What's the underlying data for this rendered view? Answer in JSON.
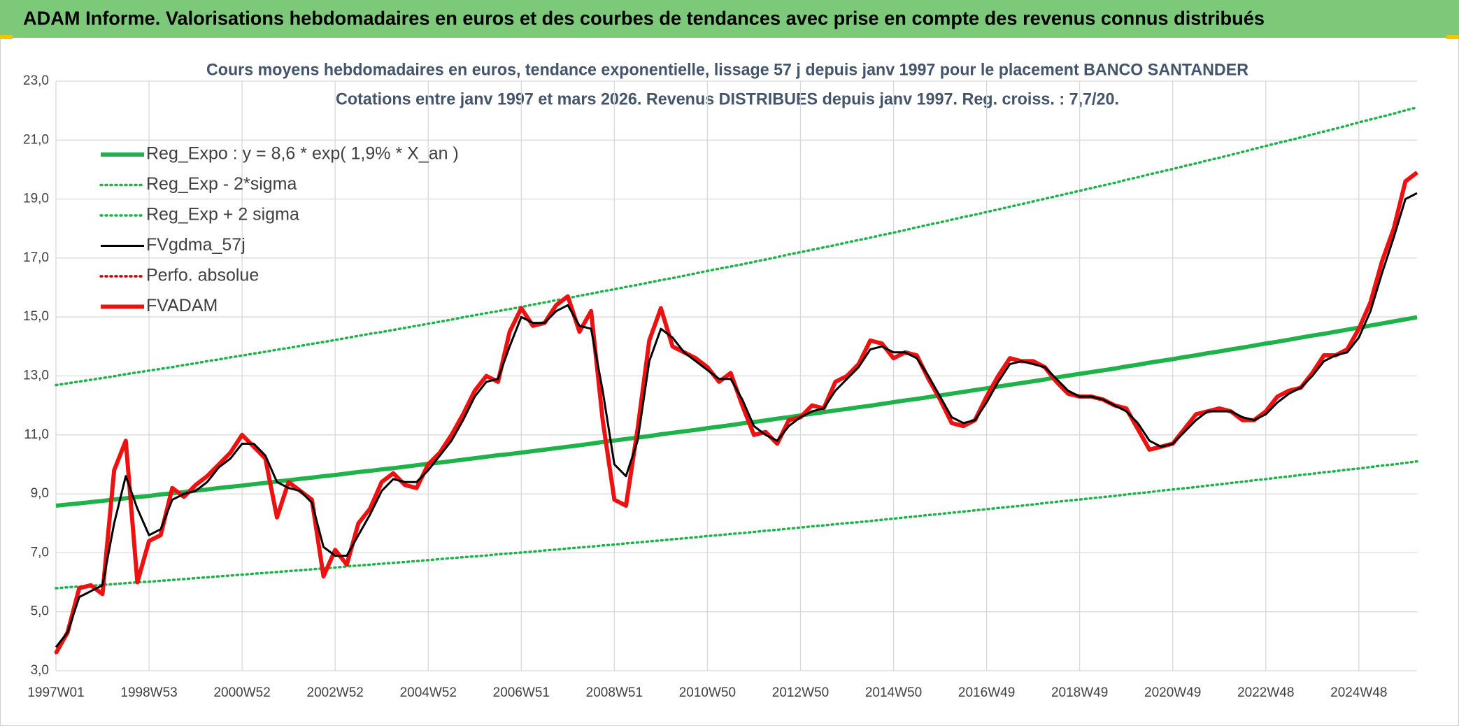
{
  "banner": "ADAM Informe. Valorisations hebdomadaires en euros et des courbes de tendances avec prise en compte des revenus connus distribués",
  "chart_data": {
    "type": "line",
    "title": "Cours moyens hebdomadaires en euros, tendance exponentielle, lissage 57 j depuis janv 1997 pour le placement BANCO SANTANDER",
    "subtitle": "Cotations entre janv 1997 et mars 2026. Revenus DISTRIBUES depuis janv 1997. Reg. croiss. : 7,7/20.",
    "categories": [
      "1997W01",
      null,
      null,
      null,
      null,
      null,
      null,
      null,
      "1998W53",
      null,
      null,
      null,
      null,
      null,
      null,
      null,
      "2000W52",
      null,
      null,
      null,
      null,
      null,
      null,
      null,
      "2002W52",
      null,
      null,
      null,
      null,
      null,
      null,
      null,
      "2004W52",
      null,
      null,
      null,
      null,
      null,
      null,
      null,
      "2006W51",
      null,
      null,
      null,
      null,
      null,
      null,
      null,
      "2008W51",
      null,
      null,
      null,
      null,
      null,
      null,
      null,
      "2010W50",
      null,
      null,
      null,
      null,
      null,
      null,
      null,
      "2012W50",
      null,
      null,
      null,
      null,
      null,
      null,
      null,
      "2014W50",
      null,
      null,
      null,
      null,
      null,
      null,
      null,
      "2016W49",
      null,
      null,
      null,
      null,
      null,
      null,
      null,
      "2018W49",
      null,
      null,
      null,
      null,
      null,
      null,
      null,
      "2020W49",
      null,
      null,
      null,
      null,
      null,
      null,
      null,
      "2022W48",
      null,
      null,
      null,
      null,
      null,
      null,
      null,
      "2024W48",
      null,
      null,
      null,
      null,
      null
    ],
    "ylim": [
      3,
      23
    ],
    "yticks": [
      {
        "value": 3,
        "label": "3,0"
      },
      {
        "value": 5,
        "label": "5,0"
      },
      {
        "value": 7,
        "label": "7,0"
      },
      {
        "value": 9,
        "label": "9,0"
      },
      {
        "value": 11,
        "label": "11,0"
      },
      {
        "value": 13,
        "label": "13,0"
      },
      {
        "value": 15,
        "label": "15,0"
      },
      {
        "value": 17,
        "label": "17,0"
      },
      {
        "value": 19,
        "label": "19,0"
      },
      {
        "value": 21,
        "label": "21,0"
      },
      {
        "value": 23,
        "label": "23,0"
      }
    ],
    "grid": true,
    "legend": "upper left",
    "series": [
      {
        "name": "Reg_Expo : y = 8,6 * exp( 1,9% *  X_an )",
        "color": "#1fb24a",
        "style": "thick",
        "values": [
          8.6,
          8.64,
          8.68,
          8.72,
          8.76,
          8.81,
          8.85,
          8.89,
          8.93,
          8.98,
          9.02,
          9.06,
          9.11,
          9.15,
          9.2,
          9.24,
          9.28,
          9.33,
          9.37,
          9.42,
          9.46,
          9.51,
          9.55,
          9.6,
          9.64,
          9.69,
          9.74,
          9.78,
          9.83,
          9.87,
          9.92,
          9.97,
          10.02,
          10.06,
          10.11,
          10.16,
          10.21,
          10.26,
          10.31,
          10.35,
          10.4,
          10.45,
          10.5,
          10.55,
          10.6,
          10.65,
          10.7,
          10.76,
          10.81,
          10.86,
          10.91,
          10.96,
          11.02,
          11.07,
          11.12,
          11.17,
          11.23,
          11.28,
          11.33,
          11.39,
          11.44,
          11.49,
          11.55,
          11.6,
          11.66,
          11.72,
          11.77,
          11.83,
          11.88,
          11.94,
          11.99,
          12.05,
          12.11,
          12.17,
          12.22,
          12.28,
          12.34,
          12.4,
          12.46,
          12.52,
          12.58,
          12.64,
          12.7,
          12.76,
          12.82,
          12.88,
          12.95,
          13.01,
          13.07,
          13.13,
          13.19,
          13.25,
          13.32,
          13.38,
          13.45,
          13.51,
          13.57,
          13.64,
          13.7,
          13.77,
          13.83,
          13.9,
          13.96,
          14.03,
          14.1,
          14.16,
          14.23,
          14.3,
          14.37,
          14.43,
          14.5,
          14.57,
          14.64,
          14.71,
          14.78,
          14.85,
          14.92,
          14.99
        ]
      },
      {
        "name": "Reg_Exp - 2*sigma",
        "color": "#1fb24a",
        "style": "dotted",
        "values": [
          5.8,
          5.83,
          5.86,
          5.88,
          5.91,
          5.94,
          5.97,
          6.0,
          6.02,
          6.05,
          6.08,
          6.11,
          6.14,
          6.17,
          6.2,
          6.23,
          6.26,
          6.29,
          6.32,
          6.35,
          6.38,
          6.41,
          6.44,
          6.47,
          6.5,
          6.54,
          6.57,
          6.6,
          6.63,
          6.66,
          6.69,
          6.72,
          6.75,
          6.79,
          6.82,
          6.85,
          6.88,
          6.91,
          6.95,
          6.98,
          7.01,
          7.04,
          7.08,
          7.11,
          7.15,
          7.18,
          7.21,
          7.25,
          7.28,
          7.32,
          7.35,
          7.39,
          7.42,
          7.46,
          7.49,
          7.53,
          7.57,
          7.6,
          7.64,
          7.67,
          7.71,
          7.75,
          7.78,
          7.82,
          7.86,
          7.9,
          7.93,
          7.97,
          8.01,
          8.04,
          8.08,
          8.12,
          8.16,
          8.2,
          8.24,
          8.28,
          8.32,
          8.36,
          8.4,
          8.44,
          8.48,
          8.52,
          8.56,
          8.6,
          8.64,
          8.69,
          8.73,
          8.77,
          8.81,
          8.85,
          8.89,
          8.93,
          8.98,
          9.02,
          9.06,
          9.11,
          9.15,
          9.19,
          9.23,
          9.28,
          9.32,
          9.37,
          9.41,
          9.46,
          9.5,
          9.55,
          9.59,
          9.64,
          9.68,
          9.73,
          9.77,
          9.82,
          9.86,
          9.91,
          9.96,
          10.0,
          10.05,
          10.1
        ]
      },
      {
        "name": "Reg_Exp + 2 sigma",
        "color": "#1fb24a",
        "style": "dotted",
        "values": [
          12.69,
          12.75,
          12.81,
          12.87,
          12.93,
          12.99,
          13.06,
          13.12,
          13.18,
          13.24,
          13.3,
          13.37,
          13.43,
          13.5,
          13.56,
          13.63,
          13.69,
          13.76,
          13.82,
          13.89,
          13.95,
          14.02,
          14.09,
          14.15,
          14.22,
          14.29,
          14.36,
          14.43,
          14.49,
          14.56,
          14.63,
          14.7,
          14.77,
          14.84,
          14.91,
          14.99,
          15.06,
          15.13,
          15.2,
          15.27,
          15.34,
          15.42,
          15.49,
          15.57,
          15.64,
          15.72,
          15.79,
          15.87,
          15.94,
          16.02,
          16.09,
          16.17,
          16.25,
          16.32,
          16.4,
          16.48,
          16.56,
          16.64,
          16.71,
          16.79,
          16.87,
          16.95,
          17.03,
          17.12,
          17.2,
          17.28,
          17.36,
          17.44,
          17.53,
          17.61,
          17.69,
          17.78,
          17.86,
          17.95,
          18.04,
          18.13,
          18.21,
          18.3,
          18.39,
          18.47,
          18.56,
          18.65,
          18.74,
          18.83,
          18.92,
          19.01,
          19.1,
          19.19,
          19.28,
          19.37,
          19.46,
          19.55,
          19.65,
          19.74,
          19.84,
          19.93,
          20.02,
          20.12,
          20.21,
          20.31,
          20.4,
          20.5,
          20.6,
          20.7,
          20.8,
          20.9,
          20.99,
          21.09,
          21.19,
          21.29,
          21.39,
          21.49,
          21.6,
          21.7,
          21.8,
          21.9,
          22.01,
          22.11
        ]
      },
      {
        "name": "FVgdma_57j",
        "color": "#000000",
        "style": "solid",
        "values": [
          3.8,
          4.3,
          5.5,
          5.7,
          5.9,
          8.0,
          9.6,
          8.5,
          7.6,
          7.8,
          8.8,
          9.0,
          9.1,
          9.4,
          9.9,
          10.2,
          10.7,
          10.7,
          10.3,
          9.4,
          9.2,
          9.1,
          8.7,
          7.2,
          6.9,
          6.9,
          7.6,
          8.3,
          9.1,
          9.5,
          9.4,
          9.4,
          9.8,
          10.3,
          10.8,
          11.5,
          12.3,
          12.8,
          12.9,
          14.0,
          15.0,
          14.8,
          14.8,
          15.2,
          15.4,
          14.7,
          14.6,
          12.5,
          10.0,
          9.6,
          10.8,
          13.5,
          14.6,
          14.3,
          13.8,
          13.5,
          13.2,
          12.9,
          12.9,
          12.2,
          11.3,
          11.0,
          10.8,
          11.3,
          11.6,
          11.8,
          11.9,
          12.5,
          12.9,
          13.3,
          13.9,
          14.0,
          13.8,
          13.8,
          13.6,
          13.0,
          12.3,
          11.6,
          11.4,
          11.5,
          12.1,
          12.8,
          13.4,
          13.5,
          13.4,
          13.3,
          12.9,
          12.5,
          12.3,
          12.3,
          12.2,
          12.0,
          11.8,
          11.4,
          10.8,
          10.6,
          10.7,
          11.1,
          11.5,
          11.8,
          11.8,
          11.8,
          11.6,
          11.5,
          11.7,
          12.1,
          12.4,
          12.6,
          13.0,
          13.5,
          13.7,
          13.8,
          14.3,
          15.2,
          16.5,
          17.7,
          19.0,
          19.2
        ]
      },
      {
        "name": "Perfo. absolue",
        "color": "#c00000",
        "style": "dotted",
        "values": [
          3.6,
          4.3,
          5.8,
          5.9,
          5.6,
          9.8,
          10.8,
          6.0,
          7.4,
          7.6,
          9.2,
          8.9,
          9.3,
          9.6,
          10.0,
          10.4,
          11.0,
          10.6,
          10.2,
          8.2,
          9.4,
          9.1,
          8.8,
          6.2,
          7.1,
          6.6,
          8.0,
          8.5,
          9.4,
          9.7,
          9.3,
          9.2,
          10.0,
          10.4,
          11.0,
          11.7,
          12.5,
          13.0,
          12.8,
          14.5,
          15.3,
          14.7,
          14.8,
          15.4,
          15.7,
          14.5,
          15.2,
          11.5,
          8.8,
          8.6,
          11.2,
          14.2,
          15.3,
          14.0,
          13.8,
          13.6,
          13.3,
          12.8,
          13.1,
          12.0,
          11.0,
          11.1,
          10.7,
          11.5,
          11.6,
          12.0,
          11.9,
          12.8,
          13.0,
          13.4,
          14.2,
          14.1,
          13.6,
          13.8,
          13.7,
          12.9,
          12.2,
          11.4,
          11.3,
          11.5,
          12.3,
          13.0,
          13.6,
          13.5,
          13.5,
          13.3,
          12.8,
          12.4,
          12.3,
          12.3,
          12.2,
          12.0,
          11.9,
          11.2,
          10.5,
          10.6,
          10.7,
          11.2,
          11.7,
          11.8,
          11.9,
          11.8,
          11.5,
          11.5,
          11.8,
          12.3,
          12.5,
          12.6,
          13.1,
          13.7,
          13.7,
          13.9,
          14.6,
          15.5,
          16.9,
          18.0,
          19.6,
          19.9
        ]
      },
      {
        "name": "FVADAM",
        "color": "#ee1111",
        "style": "thick",
        "values": [
          3.6,
          4.3,
          5.8,
          5.9,
          5.6,
          9.8,
          10.8,
          6.0,
          7.4,
          7.6,
          9.2,
          8.9,
          9.3,
          9.6,
          10.0,
          10.4,
          11.0,
          10.6,
          10.2,
          8.2,
          9.4,
          9.1,
          8.8,
          6.2,
          7.1,
          6.6,
          8.0,
          8.5,
          9.4,
          9.7,
          9.3,
          9.2,
          10.0,
          10.4,
          11.0,
          11.7,
          12.5,
          13.0,
          12.8,
          14.5,
          15.3,
          14.7,
          14.8,
          15.4,
          15.7,
          14.5,
          15.2,
          11.5,
          8.8,
          8.6,
          11.2,
          14.2,
          15.3,
          14.0,
          13.8,
          13.6,
          13.3,
          12.8,
          13.1,
          12.0,
          11.0,
          11.1,
          10.7,
          11.5,
          11.6,
          12.0,
          11.9,
          12.8,
          13.0,
          13.4,
          14.2,
          14.1,
          13.6,
          13.8,
          13.7,
          12.9,
          12.2,
          11.4,
          11.3,
          11.5,
          12.3,
          13.0,
          13.6,
          13.5,
          13.5,
          13.3,
          12.8,
          12.4,
          12.3,
          12.3,
          12.2,
          12.0,
          11.9,
          11.2,
          10.5,
          10.6,
          10.7,
          11.2,
          11.7,
          11.8,
          11.9,
          11.8,
          11.5,
          11.5,
          11.8,
          12.3,
          12.5,
          12.6,
          13.1,
          13.7,
          13.7,
          13.9,
          14.6,
          15.5,
          16.9,
          18.0,
          19.6,
          19.9
        ]
      }
    ]
  }
}
